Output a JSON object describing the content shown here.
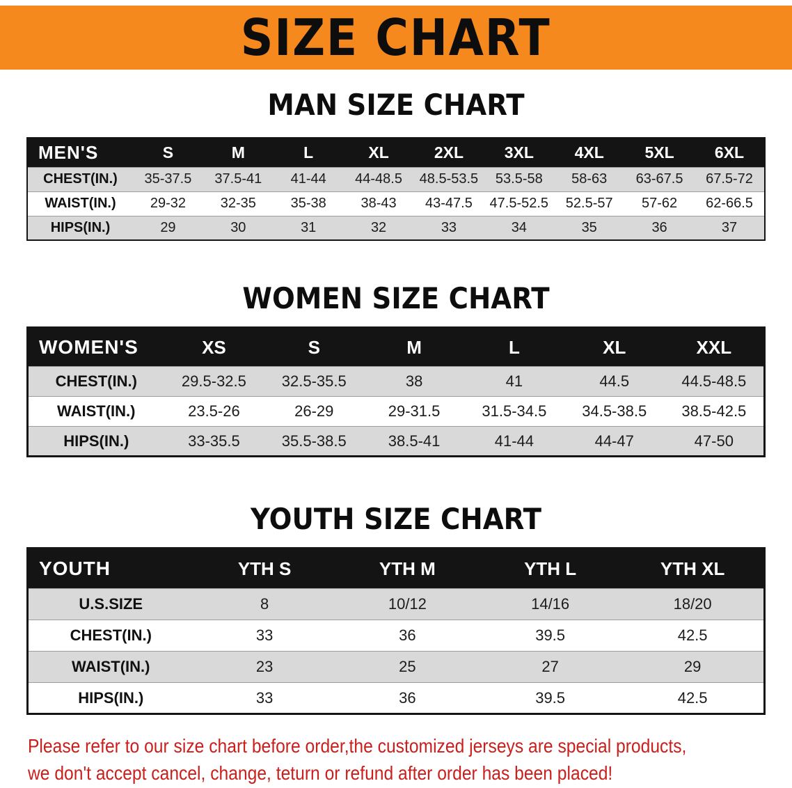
{
  "banner": {
    "title": "SIZE CHART"
  },
  "chart_data": [
    {
      "type": "table",
      "title": "MAN SIZE CHART",
      "columns": [
        "MEN'S",
        "S",
        "M",
        "L",
        "XL",
        "2XL",
        "3XL",
        "4XL",
        "5XL",
        "6XL"
      ],
      "rows": [
        [
          "CHEST(IN.)",
          "35-37.5",
          "37.5-41",
          "41-44",
          "44-48.5",
          "48.5-53.5",
          "53.5-58",
          "58-63",
          "63-67.5",
          "67.5-72"
        ],
        [
          "WAIST(IN.)",
          "29-32",
          "32-35",
          "35-38",
          "38-43",
          "43-47.5",
          "47.5-52.5",
          "52.5-57",
          "57-62",
          "62-66.5"
        ],
        [
          "HIPS(IN.)",
          "29",
          "30",
          "31",
          "32",
          "33",
          "34",
          "35",
          "36",
          "37"
        ]
      ]
    },
    {
      "type": "table",
      "title": "WOMEN SIZE CHART",
      "columns": [
        "WOMEN'S",
        "XS",
        "S",
        "M",
        "L",
        "XL",
        "XXL"
      ],
      "rows": [
        [
          "CHEST(IN.)",
          "29.5-32.5",
          "32.5-35.5",
          "38",
          "41",
          "44.5",
          "44.5-48.5"
        ],
        [
          "WAIST(IN.)",
          "23.5-26",
          "26-29",
          "29-31.5",
          "31.5-34.5",
          "34.5-38.5",
          "38.5-42.5"
        ],
        [
          "HIPS(IN.)",
          "33-35.5",
          "35.5-38.5",
          "38.5-41",
          "41-44",
          "44-47",
          "47-50"
        ]
      ]
    },
    {
      "type": "table",
      "title": "YOUTH SIZE CHART",
      "columns": [
        "YOUTH",
        "YTH S",
        "YTH M",
        "YTH L",
        "YTH XL"
      ],
      "rows": [
        [
          "U.S.SIZE",
          "8",
          "10/12",
          "14/16",
          "18/20"
        ],
        [
          "CHEST(IN.)",
          "33",
          "36",
          "39.5",
          "42.5"
        ],
        [
          "WAIST(IN.)",
          "23",
          "25",
          "27",
          "29"
        ],
        [
          "HIPS(IN.)",
          "33",
          "36",
          "39.5",
          "42.5"
        ]
      ]
    }
  ],
  "footer": {
    "lines": [
      "Please refer to our size chart before order,the customized jerseys are special products,",
      "we don't accept cancel, change, teturn or refund after order has been placed!"
    ]
  },
  "colors": {
    "banner_bg": "#f6891e",
    "header_bg": "#141414",
    "alt_row_bg": "#d9d9d9",
    "notice_red": "#c9201d"
  }
}
